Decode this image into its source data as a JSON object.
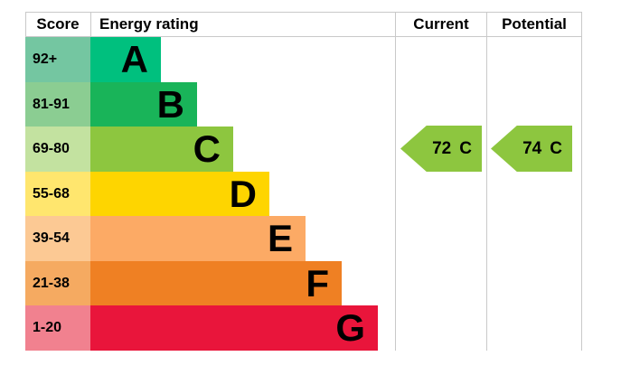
{
  "header": {
    "score": "Score",
    "energy_rating": "Energy rating",
    "current": "Current",
    "potential": "Potential"
  },
  "bands": [
    {
      "score_range": "92+",
      "letter": "A",
      "bar_color": "#00c07e",
      "score_cell_color": "#74c6a1"
    },
    {
      "score_range": "81-91",
      "letter": "B",
      "bar_color": "#19b459",
      "score_cell_color": "#8bcd92"
    },
    {
      "score_range": "69-80",
      "letter": "C",
      "bar_color": "#8dc63f",
      "score_cell_color": "#c3e2a0"
    },
    {
      "score_range": "55-68",
      "letter": "D",
      "bar_color": "#fed500",
      "score_cell_color": "#ffe66e"
    },
    {
      "score_range": "39-54",
      "letter": "E",
      "bar_color": "#fcaa65",
      "score_cell_color": "#fcc994"
    },
    {
      "score_range": "21-38",
      "letter": "F",
      "bar_color": "#ef8023",
      "score_cell_color": "#f5aa61"
    },
    {
      "score_range": "1-20",
      "letter": "G",
      "bar_color": "#e9153b",
      "score_cell_color": "#f1818f"
    }
  ],
  "arrows": {
    "current": {
      "value": "72",
      "band": "C",
      "color": "#8dc63f"
    },
    "potential": {
      "value": "74",
      "band": "C",
      "color": "#8dc63f"
    }
  },
  "colors": {
    "grid": "#c9c9c9",
    "text": "#000000",
    "background": "#ffffff"
  },
  "chart_data": {
    "type": "bar",
    "orientation": "horizontal",
    "chart_kind": "epc-energy-rating",
    "columns": [
      "Score",
      "Energy rating",
      "Current",
      "Potential"
    ],
    "categories": [
      "A",
      "B",
      "C",
      "D",
      "E",
      "F",
      "G"
    ],
    "score_ranges": [
      "92+",
      "81-91",
      "69-80",
      "55-68",
      "39-54",
      "21-38",
      "1-20"
    ],
    "bar_lengths_relative": [
      1,
      2,
      3,
      4,
      5,
      6,
      7
    ],
    "series": [
      {
        "name": "Current",
        "value": 72,
        "band": "C"
      },
      {
        "name": "Potential",
        "value": 74,
        "band": "C"
      }
    ],
    "legend_position": "none",
    "grid": "column-dividers-only"
  }
}
